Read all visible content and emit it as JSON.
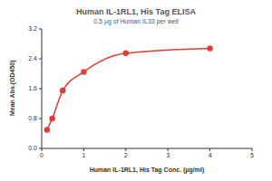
{
  "chart_data": {
    "type": "line",
    "title": "Human IL-1RL1, His Tag ELISA",
    "subtitle": "0.5 μg of Human IL33 per well",
    "x_label": "Human IL-1RL1, His Tag Conc. (μg/ml)",
    "y_label": "Mean Abs.(OD450)",
    "x": [
      0.125,
      0.25,
      0.5,
      1,
      2,
      4
    ],
    "values": [
      0.5,
      0.8,
      1.55,
      2.05,
      2.55,
      2.68
    ],
    "color": "#e03c31",
    "marker": "circle",
    "xlim": [
      0,
      5
    ],
    "xticks": [
      0,
      1,
      2,
      3,
      4,
      5
    ],
    "ylim": [
      0,
      3.2
    ],
    "yticks": [
      {
        "value": 0,
        "label": "0.0"
      },
      0.8,
      1.6,
      2.4,
      3.2
    ],
    "grid": false
  }
}
